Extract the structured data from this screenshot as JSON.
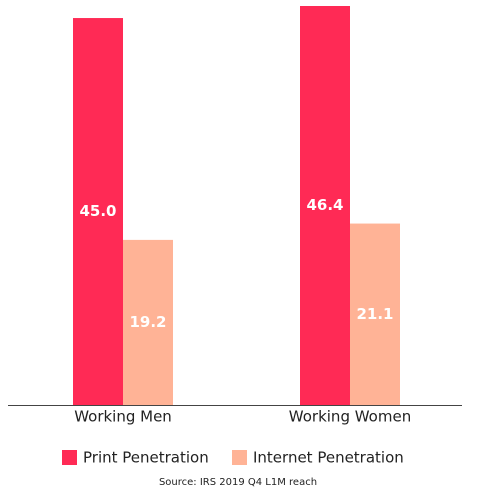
{
  "chart_data": {
    "type": "bar",
    "categories": [
      "Working Men",
      "Working Women"
    ],
    "series": [
      {
        "name": "Print Penetration",
        "color": "#ff2a55",
        "values": [
          45.0,
          46.4
        ],
        "value_labels": [
          "45.0",
          "46.4"
        ]
      },
      {
        "name": "Internet Penetration",
        "color": "#ffb396",
        "values": [
          19.2,
          21.1
        ],
        "value_labels": [
          "19.2",
          "21.1"
        ]
      }
    ],
    "source": "Source: IRS 2019 Q4 L1M reach"
  }
}
